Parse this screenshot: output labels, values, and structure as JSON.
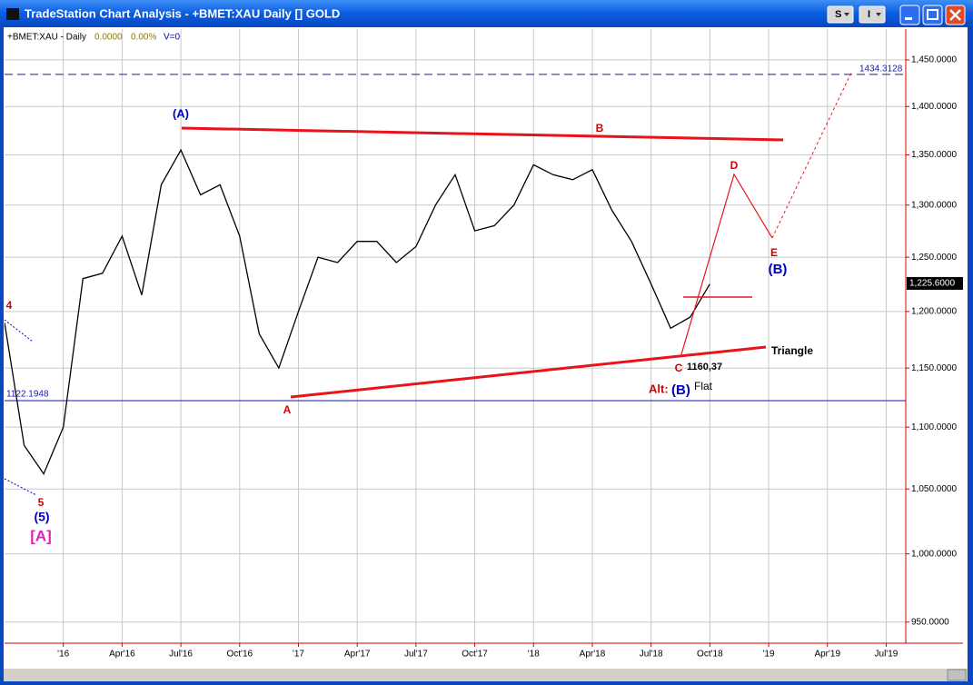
{
  "window": {
    "title": "TradeStation Chart Analysis - +BMET:XAU Daily [] GOLD",
    "buttons": [
      "S",
      "I"
    ]
  },
  "chart_data": {
    "type": "line",
    "legend": {
      "symbol": "+BMET:XAU - Daily",
      "change": "0.0000",
      "change_pct": "0.00%",
      "volume": "V=0"
    },
    "x": [
      "2015-10",
      "2015-11",
      "2015-12",
      "2016-01",
      "2016-02",
      "2016-03",
      "2016-04",
      "2016-05",
      "2016-06",
      "2016-07",
      "2016-08",
      "2016-09",
      "2016-10",
      "2016-11",
      "2016-12",
      "2017-01",
      "2017-02",
      "2017-03",
      "2017-04",
      "2017-05",
      "2017-06",
      "2017-07",
      "2017-08",
      "2017-09",
      "2017-10",
      "2017-11",
      "2017-12",
      "2018-01",
      "2018-02",
      "2018-03",
      "2018-04",
      "2018-05",
      "2018-06",
      "2018-07",
      "2018-08",
      "2018-09",
      "2018-10"
    ],
    "values": [
      1190,
      1085,
      1062,
      1100,
      1230,
      1235,
      1270,
      1215,
      1320,
      1355,
      1310,
      1320,
      1270,
      1180,
      1150,
      1200,
      1250,
      1245,
      1265,
      1265,
      1245,
      1260,
      1300,
      1330,
      1275,
      1280,
      1300,
      1340,
      1330,
      1325,
      1335,
      1295,
      1265,
      1225,
      1185,
      1195,
      1225
    ],
    "color": "#000000",
    "log_scale": true,
    "grid": true,
    "xlim": [
      "2015-10",
      "2019-08"
    ],
    "xticks": [
      {
        "value": "2016-01",
        "label": "'16"
      },
      {
        "value": "2016-04",
        "label": "Apr'16"
      },
      {
        "value": "2016-07",
        "label": "Jul'16"
      },
      {
        "value": "2016-10",
        "label": "Oct'16"
      },
      {
        "value": "2017-01",
        "label": "'17"
      },
      {
        "value": "2017-04",
        "label": "Apr'17"
      },
      {
        "value": "2017-07",
        "label": "Jul'17"
      },
      {
        "value": "2017-10",
        "label": "Oct'17"
      },
      {
        "value": "2018-01",
        "label": "'18"
      },
      {
        "value": "2018-04",
        "label": "Apr'18"
      },
      {
        "value": "2018-07",
        "label": "Jul'18"
      },
      {
        "value": "2018-10",
        "label": "Oct'18"
      },
      {
        "value": "2019-01",
        "label": "'19"
      },
      {
        "value": "2019-04",
        "label": "Apr'19"
      },
      {
        "value": "2019-07",
        "label": "Jul'19"
      }
    ],
    "ylim": [
      935,
      1484
    ],
    "yticks": [
      {
        "value": 950,
        "label": "950.0000"
      },
      {
        "value": 1000,
        "label": "1,000.0000"
      },
      {
        "value": 1050,
        "label": "1,050.0000"
      },
      {
        "value": 1100,
        "label": "1,100.0000"
      },
      {
        "value": 1150,
        "label": "1,150.0000"
      },
      {
        "value": 1200,
        "label": "1,200.0000"
      },
      {
        "value": 1250,
        "label": "1,250.0000"
      },
      {
        "value": 1300,
        "label": "1,300.0000"
      },
      {
        "value": 1350,
        "label": "1,350.0000"
      },
      {
        "value": 1400,
        "label": "1,400.0000"
      },
      {
        "value": 1450,
        "label": "1,450.0000"
      }
    ],
    "reference_lines": [
      1434.3128,
      1122.1948
    ],
    "last_price": {
      "value": 1225.6,
      "label": "1,225.6000"
    },
    "annotations": [
      "(A)",
      "B",
      "D",
      "E",
      "(B)",
      "Triangle",
      "C",
      "1160,37",
      "Alt:",
      "(B)",
      "Flat",
      "A",
      "4",
      "5",
      "(5)",
      "[A]"
    ]
  }
}
